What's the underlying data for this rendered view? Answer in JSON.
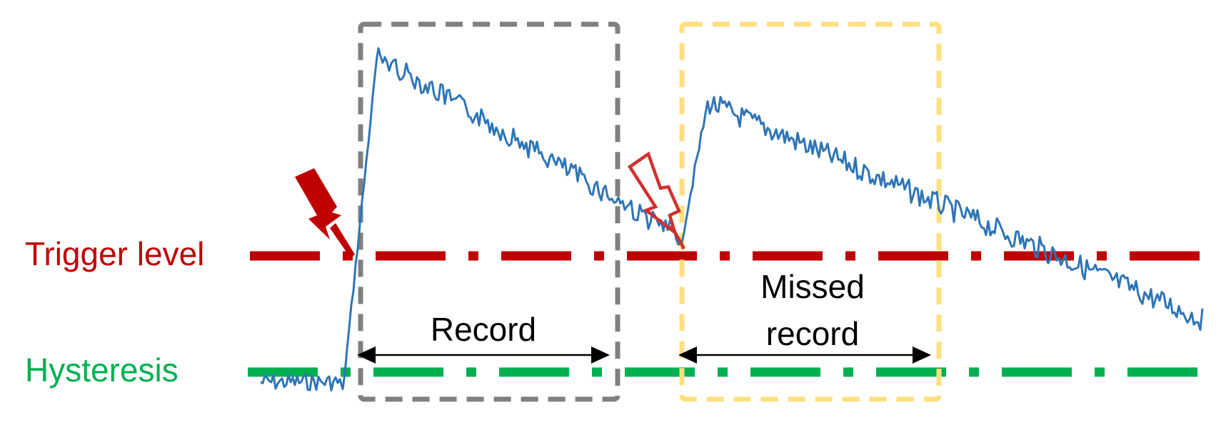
{
  "labels": {
    "trigger_level": "Trigger level",
    "hysteresis": "Hysteresis",
    "record": "Record",
    "missed_record_line1": "Missed",
    "missed_record_line2": "record"
  },
  "colors": {
    "trigger": "#c00000",
    "hysteresis": "#00b050",
    "signal": "#2e75b6",
    "record_box": "#808080",
    "missed_box": "#ffe080",
    "arrow": "#000000"
  },
  "icons": {
    "trigger_event": "lightning-bolt-icon",
    "missed_trigger_event": "lightning-bolt-outline-icon"
  }
}
